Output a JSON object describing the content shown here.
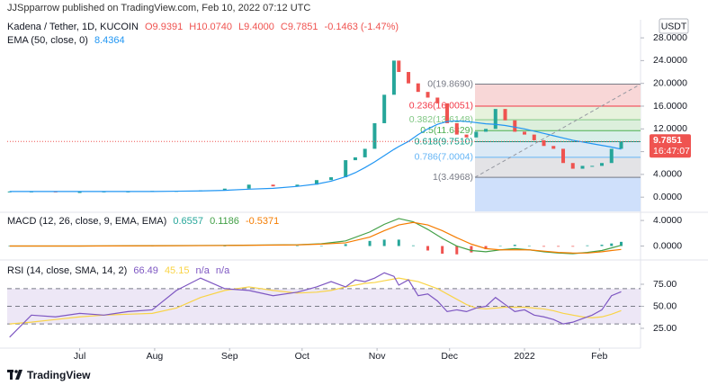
{
  "header": "JJSpparrow published on TradingView.com, Feb 10, 2022 07:12 UTC",
  "footer": "TradingView",
  "chart_data": [
    {
      "type": "candlestick",
      "title": "Kadena / Tether, 1D, KUCOIN",
      "ohlc": [
        "O9.9391",
        "H10.0740",
        "L9.4000",
        "C9.7851"
      ],
      "change": "-0.1463 (-1.47%)",
      "currency": "USDT",
      "countdown": "16:47:07",
      "up_color": "#26a69a",
      "down_color": "#ef5350",
      "x": [
        -29,
        -20,
        -10,
        0,
        10,
        20,
        30,
        40,
        50,
        60,
        70,
        80,
        90,
        98,
        104,
        110,
        114,
        118,
        122,
        126,
        130,
        132,
        136,
        140,
        144,
        148,
        152,
        156,
        160,
        164,
        168,
        172,
        176,
        180,
        184,
        188,
        192,
        196,
        200,
        204,
        208,
        212,
        216,
        220,
        224
      ],
      "close": [
        1.0,
        1.0,
        0.9,
        0.9,
        1.0,
        1.0,
        1.1,
        1.1,
        1.2,
        1.5,
        2.2,
        1.9,
        2.2,
        3.0,
        3.5,
        6.5,
        7.0,
        8.5,
        13,
        18,
        24,
        22,
        20,
        18.5,
        17.5,
        16.5,
        13,
        11,
        10.5,
        11.5,
        12,
        15.5,
        13.5,
        11.5,
        11,
        10,
        9,
        8.5,
        6,
        5,
        5.5,
        5.5,
        6,
        8.5,
        9.7851
      ],
      "series": [
        {
          "name": "EMA (50, close, 0)",
          "color": "#2196f3",
          "last_value": 8.4364,
          "values": [
            1.0,
            1.0,
            1.0,
            1.0,
            1.0,
            1.0,
            1.0,
            1.05,
            1.1,
            1.2,
            1.4,
            1.55,
            1.9,
            2.3,
            2.8,
            3.6,
            4.3,
            5.2,
            6.2,
            7.3,
            8.4,
            8.9,
            9.8,
            11,
            12,
            12.8,
            13.3,
            13.4,
            13.3,
            13.1,
            12.9,
            12.8,
            12.6,
            12.3,
            12,
            11.6,
            11.2,
            10.8,
            10.4,
            10,
            9.7,
            9.4,
            9.1,
            8.8,
            8.4364
          ]
        }
      ],
      "fib_levels": [
        {
          "label": "0(19.8690)",
          "value": 19.869,
          "color": "#787b86",
          "zone": "#f8d7d7"
        },
        {
          "label": "0.236(16.0051)",
          "value": 16.0051,
          "color": "#f23645",
          "zone": "#e6f2dc"
        },
        {
          "label": "0.382(13.6148)",
          "value": 13.6148,
          "color": "#81c784",
          "zone": "#dcefdc"
        },
        {
          "label": "0.5(11.6829)",
          "value": 11.6829,
          "color": "#4caf50",
          "zone": "#d9efe9"
        },
        {
          "label": "0.618(9.7510)",
          "value": 9.751,
          "color": "#089981",
          "zone": "#dbe9f5"
        },
        {
          "label": "0.786(7.0004)",
          "value": 7.0004,
          "color": "#64b5f6",
          "zone": "#e3e3e6"
        },
        {
          "label": "1(3.4968)",
          "value": 3.4968,
          "color": "#787b86",
          "zone": "#cfe0fb"
        }
      ],
      "xlim": [
        -30,
        232
      ],
      "ylim": [
        -2.5,
        30.7
      ],
      "yticks": [
        {
          "value": 28,
          "label": "28.0000"
        },
        {
          "value": 24,
          "label": "24.0000"
        },
        {
          "value": 20,
          "label": "20.0000"
        },
        {
          "value": 16,
          "label": "16.0000"
        },
        {
          "value": 12,
          "label": "12.0000"
        },
        {
          "value": 8,
          "label": "8.0000"
        },
        {
          "value": 4,
          "label": "4.0000"
        },
        {
          "value": 0,
          "label": "0.0000"
        }
      ]
    },
    {
      "type": "macd",
      "title": "MACD (12, 26, close, 9, EMA, EMA)",
      "x": [
        -29,
        0,
        30,
        60,
        90,
        100,
        110,
        120,
        126,
        132,
        138,
        144,
        150,
        156,
        162,
        168,
        174,
        180,
        186,
        192,
        198,
        204,
        210,
        216,
        220,
        224
      ],
      "series": [
        {
          "name": "Histogram",
          "color": "#26a69a",
          "down_color": "#ef5350",
          "last_value": 0.6557,
          "values": [
            0,
            0,
            0.01,
            0.02,
            0.02,
            0.05,
            0.3,
            0.8,
            1.0,
            1.0,
            0.1,
            -0.7,
            -1.2,
            -1.3,
            -1.0,
            -0.5,
            0,
            0.2,
            0,
            -0.1,
            -0.1,
            -0.1,
            0.1,
            0.2,
            0.4,
            0.6557
          ]
        },
        {
          "name": "MACD",
          "color": "#43a047",
          "last_value": 0.1186,
          "values": [
            0,
            0,
            0.05,
            0.1,
            0.2,
            0.35,
            0.8,
            2.2,
            3.4,
            4.3,
            3.8,
            2.6,
            1.2,
            0,
            -0.7,
            -0.9,
            -0.6,
            -0.4,
            -0.6,
            -0.9,
            -1.1,
            -1.2,
            -1.0,
            -0.7,
            -0.3,
            0.1186
          ]
        },
        {
          "name": "Signal",
          "color": "#f57c00",
          "last_value": -0.5371,
          "values": [
            0,
            0,
            0.04,
            0.08,
            0.18,
            0.3,
            0.5,
            1.4,
            2.4,
            3.3,
            3.7,
            3.3,
            2.4,
            1.3,
            0.3,
            -0.4,
            -0.6,
            -0.6,
            -0.6,
            -0.8,
            -1.0,
            -1.1,
            -1.1,
            -0.9,
            -0.7,
            -0.5371
          ]
        }
      ],
      "xlim": [
        -30,
        232
      ],
      "ylim": [
        -1.9,
        5
      ],
      "yticks": [
        {
          "value": 4,
          "label": "4.0000"
        },
        {
          "value": 0,
          "label": "0.0000"
        }
      ]
    },
    {
      "type": "rsi",
      "title": "RSI (14, close, SMA, 14, 2)",
      "extra_values": [
        "n/a",
        "n/a"
      ],
      "x": [
        -29,
        -20,
        -10,
        0,
        10,
        20,
        30,
        40,
        50,
        60,
        70,
        80,
        90,
        98,
        104,
        110,
        114,
        118,
        122,
        126,
        130,
        132,
        136,
        140,
        144,
        148,
        152,
        156,
        160,
        164,
        168,
        172,
        176,
        180,
        184,
        188,
        192,
        196,
        200,
        204,
        208,
        212,
        216,
        220,
        224
      ],
      "series": [
        {
          "name": "RSI",
          "color": "#7e57c2",
          "last_value": 66.49,
          "values": [
            15,
            40,
            38,
            42,
            40,
            44,
            46,
            68,
            82,
            70,
            68,
            62,
            66,
            72,
            78,
            72,
            80,
            78,
            82,
            88,
            84,
            74,
            80,
            62,
            64,
            56,
            44,
            46,
            44,
            48,
            50,
            60,
            52,
            44,
            46,
            40,
            38,
            35,
            30,
            32,
            36,
            40,
            46,
            62,
            66.49
          ]
        },
        {
          "name": "SMA",
          "color": "#f9d447",
          "last_value": 45.15,
          "values": [
            30,
            32,
            35,
            38,
            40,
            41,
            42,
            48,
            60,
            68,
            72,
            68,
            65,
            66,
            68,
            72,
            74,
            76,
            77,
            79,
            81,
            82,
            80,
            78,
            74,
            70,
            64,
            58,
            52,
            48,
            47,
            48,
            49,
            49,
            49,
            48,
            47,
            45,
            42,
            40,
            38,
            37,
            38,
            41,
            45.15
          ]
        }
      ],
      "bands": [
        70,
        50,
        30
      ],
      "band_fill": "#ede7f6",
      "xlim": [
        -30,
        232
      ],
      "ylim": [
        4.6,
        99.5
      ],
      "yticks": [
        {
          "value": 75,
          "label": "75.00"
        },
        {
          "value": 50,
          "label": "50.00"
        },
        {
          "value": 25,
          "label": "25.00"
        }
      ],
      "xticks": [
        {
          "value": 0,
          "label": "Jul"
        },
        {
          "value": 31,
          "label": "Aug"
        },
        {
          "value": 62,
          "label": "Sep"
        },
        {
          "value": 92,
          "label": "Oct"
        },
        {
          "value": 123,
          "label": "Nov"
        },
        {
          "value": 153,
          "label": "Dec"
        },
        {
          "value": 184,
          "label": "2022"
        },
        {
          "value": 215,
          "label": "Feb"
        }
      ]
    }
  ]
}
